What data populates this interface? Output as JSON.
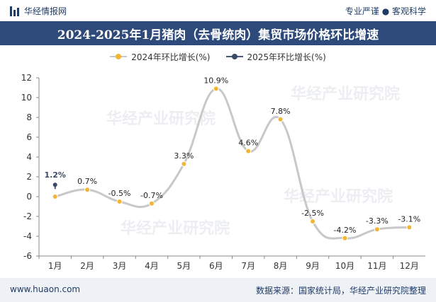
{
  "header": {
    "brand_name": "华经情报网",
    "tagline": "专业严谨 ● 客观科学"
  },
  "title": "2024-2025年1月猪肉（去骨统肉）集贸市场价格环比增速",
  "footer": {
    "website": "www.huaon.com",
    "source": "数据来源：国家统计局，华经产业研究院整理"
  },
  "watermark": "华经产业研究院",
  "colors": {
    "title_bg": "#2d4a7a",
    "series_2024_line": "#c8c8c8",
    "series_2024_point": "#f2b632",
    "series_2025_line": "#4a5a7a",
    "series_2025_point": "#3b4a6b"
  },
  "chart_data": {
    "type": "line",
    "categories": [
      "1月",
      "2月",
      "3月",
      "4月",
      "5月",
      "6月",
      "7月",
      "8月",
      "9月",
      "10月",
      "11月",
      "12月"
    ],
    "series": [
      {
        "name": "2024年环比增长(%)",
        "values": [
          null,
          0.7,
          -0.5,
          -0.7,
          3.3,
          10.9,
          4.6,
          7.8,
          -2.5,
          -4.2,
          -3.3,
          -3.1
        ],
        "labels": [
          "",
          "0.7%",
          "-0.5%",
          "-0.7%",
          "3.3%",
          "10.9%",
          "4.6%",
          "7.8%",
          "-2.5%",
          "-4.2%",
          "-3.3%",
          "-3.1%"
        ]
      },
      {
        "name": "2025年环比增长(%)",
        "values": [
          1.2,
          null,
          null,
          null,
          null,
          null,
          null,
          null,
          null,
          null,
          null,
          null
        ],
        "labels": [
          "1.2%",
          "",
          "",
          "",
          "",
          "",
          "",
          "",
          "",
          "",
          "",
          ""
        ]
      }
    ],
    "extra_point_2024_jan": -0.0,
    "y_ticks": [
      12,
      10,
      8,
      6,
      4,
      2,
      0,
      -2,
      -4,
      -6
    ],
    "ylim": [
      -6,
      12
    ],
    "legend_position": "top-center",
    "grid": false
  }
}
